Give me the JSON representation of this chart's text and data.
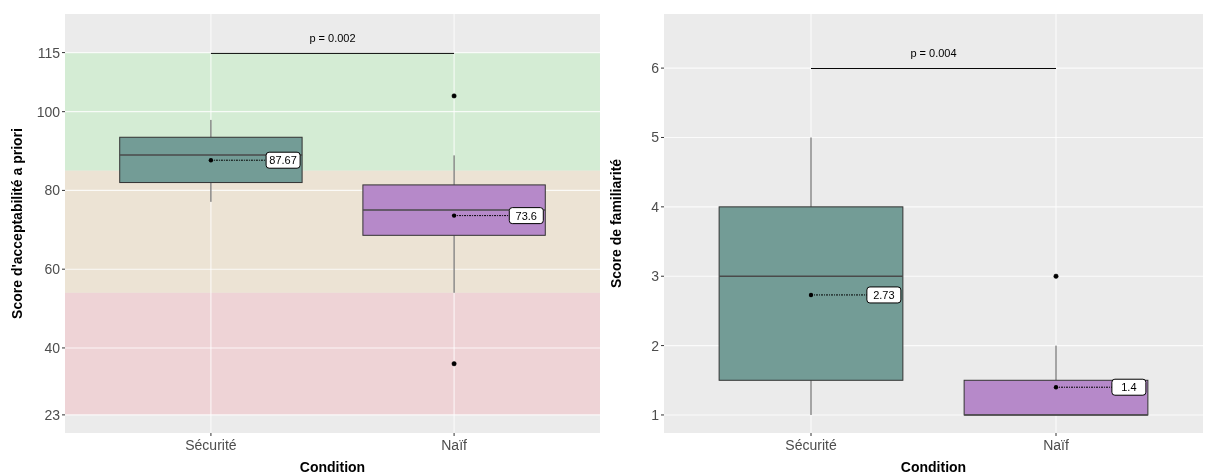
{
  "chart_data": [
    {
      "type": "box",
      "xlabel": "Condition",
      "ylabel": "Score d'acceptabilité a priori",
      "categories": [
        "Sécurité",
        "Naïf"
      ],
      "colors": [
        "#739c96",
        "#b689c9"
      ],
      "boxes": [
        {
          "low": 77.1,
          "q1": 82,
          "median": 89,
          "q3": 93.5,
          "high": 97.9,
          "mean": 87.67
        },
        {
          "low": 54,
          "q1": 68.6,
          "median": 75,
          "q3": 81.4,
          "high": 88.9,
          "mean": 73.6,
          "outliers": [
            104,
            36
          ]
        }
      ],
      "value_labels": [
        "87.67",
        "73.6"
      ],
      "ylim": [
        18.4,
        124.8
      ],
      "yticks": [
        23,
        40,
        60,
        80,
        100,
        115
      ],
      "grid": true,
      "bands": [
        {
          "axis": "y",
          "from": 85,
          "to": 115,
          "color": "#d4ecd4"
        },
        {
          "axis": "y",
          "from": 54,
          "to": 85,
          "color": "#ece3d4"
        },
        {
          "axis": "y",
          "from": 23,
          "to": 54,
          "color": "#eed3d6"
        }
      ],
      "annotations": [
        "p = 0.002"
      ]
    },
    {
      "type": "box",
      "xlabel": "Condition",
      "ylabel": "Score de familiarité",
      "categories": [
        "Sécurité",
        "Naïf"
      ],
      "colors": [
        "#739c96",
        "#b689c9"
      ],
      "boxes": [
        {
          "low": 1,
          "q1": 1.5,
          "median": 3,
          "q3": 4,
          "high": 5,
          "mean": 2.73
        },
        {
          "low": 1,
          "q1": 1,
          "median": 1,
          "q3": 1.5,
          "high": 2,
          "mean": 1.4,
          "outliers": [
            3
          ]
        }
      ],
      "value_labels": [
        "2.73",
        "1.4"
      ],
      "ylim": [
        0.74,
        6.78
      ],
      "yticks": [
        1,
        2,
        3,
        4,
        5,
        6
      ],
      "grid": true,
      "annotations": [
        "p = 0.004"
      ]
    }
  ]
}
